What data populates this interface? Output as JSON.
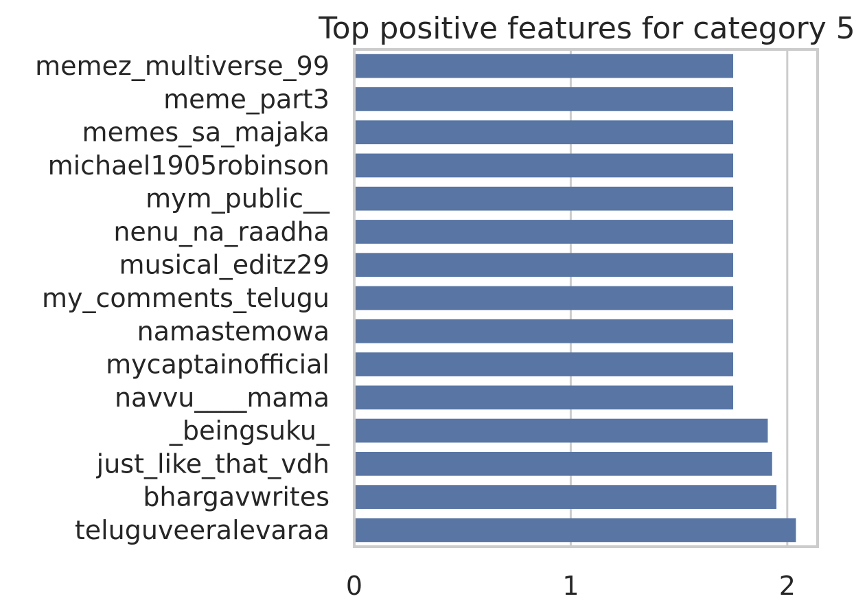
{
  "chart_data": {
    "type": "bar",
    "orientation": "horizontal",
    "title": "Top positive features for category 5",
    "xlabel": "",
    "ylabel": "",
    "categories": [
      "memez_multiverse_99",
      "meme_part3",
      "memes_sa_majaka",
      "michael1905robinson",
      "mym_public__",
      "nenu_na_raadha",
      "musical_editz29",
      "my_comments_telugu",
      "namastemowa",
      "mycaptainofficial",
      "navvu____mama",
      "_beingsuku_",
      "just_like_that_vdh",
      "bhargavwrites",
      "teluguveeralevaraa"
    ],
    "values": [
      1.75,
      1.75,
      1.75,
      1.75,
      1.75,
      1.75,
      1.75,
      1.75,
      1.75,
      1.75,
      1.75,
      1.91,
      1.93,
      1.95,
      2.04
    ],
    "xlim": [
      0,
      2.14
    ],
    "xticks": [
      0,
      1,
      2
    ],
    "grid": true,
    "bar_color": "#5875a4"
  }
}
